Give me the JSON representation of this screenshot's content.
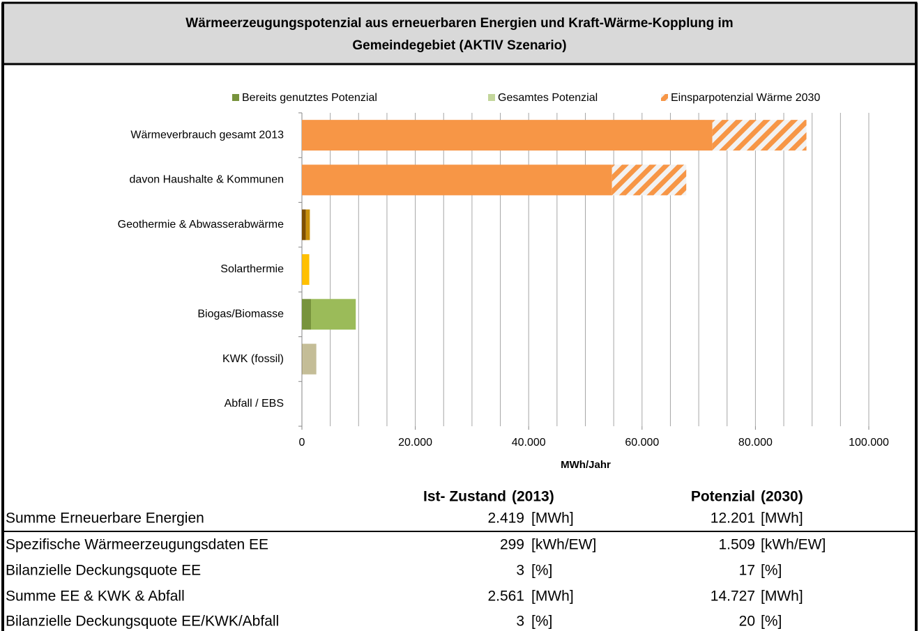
{
  "chart_data": {
    "type": "stacked-barh",
    "title": "Wärmeerzeugungspotenzial aus erneuerbaren Energien und Kraft-Wärme-Kopplung im",
    "subtitle": "Gemeindegebiet (AKTIV Szenario)",
    "categories": [
      "Wärmeverbrauch gesamt 2013",
      "davon Haushalte & Kommunen",
      "Geothermie & Abwasserabwärme",
      "Solarthermie",
      "Biogas/Biomasse",
      "KWK (fossil)",
      "Abfall / EBS"
    ],
    "series": [
      {
        "name": "Bereits genutztes Potenzial",
        "color": "#77933c",
        "colors": [
          "#f79646",
          "#f79646",
          "#7f4f00",
          "#e6a800",
          "#77933c",
          "#a8a07a",
          "#999999"
        ],
        "values": [
          0,
          0,
          700,
          100,
          1600,
          140,
          0
        ]
      },
      {
        "name": "Gesamtes Potenzial",
        "color": "#c3d69b",
        "colors": [
          "#f79646",
          "#f79646",
          "#c8900a",
          "#ffc000",
          "#9bbb59",
          "#c4bd97",
          "#bbbbbb"
        ],
        "values": [
          72400,
          54700,
          700,
          1200,
          7900,
          2400,
          0
        ]
      },
      {
        "name": "Einsparpotenzial Wärme 2030",
        "color": "#f79646",
        "hatch": true,
        "values": [
          16600,
          13100,
          0,
          0,
          0,
          0,
          0
        ]
      }
    ],
    "xlabel": "MWh/Jahr",
    "xlim": [
      0,
      100000
    ],
    "xticks": [
      0,
      {
        "value": 20000,
        "label": "20.000"
      },
      {
        "value": 40000,
        "label": "40.000"
      },
      {
        "value": 60000,
        "label": "60.000"
      },
      {
        "value": 80000,
        "label": "80.000"
      },
      {
        "value": 100000,
        "label": "100.000"
      }
    ],
    "xgrid": [
      5000,
      10000,
      15000,
      20000,
      25000,
      30000,
      35000,
      40000,
      45000,
      50000,
      55000,
      60000,
      65000,
      70000,
      75000,
      80000,
      85000,
      90000,
      95000,
      100000
    ],
    "legend": "top"
  },
  "table": {
    "header": [
      "Ist- Zustand",
      "(2013)",
      "Potenzial",
      "(2030)"
    ],
    "rows": [
      [
        "Summe Erneuerbare Energien",
        "2.419",
        "[MWh]",
        "12.201",
        "[MWh]"
      ],
      [
        "Spezifische Wärmeerzeugungsdaten EE",
        "299",
        "[kWh/EW]",
        "1.509",
        "[kWh/EW]"
      ],
      [
        "Bilanzielle Deckungsquote EE",
        "3",
        "[%]",
        "17",
        "[%]"
      ],
      [
        "Summe EE & KWK & Abfall",
        "2.561",
        "[MWh]",
        "14.727",
        "[MWh]"
      ],
      [
        "Bilanzielle Deckungsquote EE/KWK/Abfall",
        "3",
        "[%]",
        "20",
        "[%]"
      ]
    ]
  }
}
